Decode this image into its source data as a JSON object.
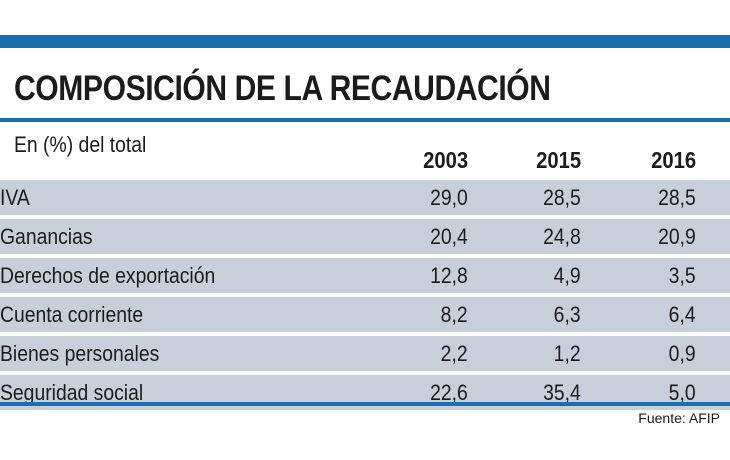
{
  "chart_data": {
    "type": "table",
    "title": "COMPOSICIÓN DE LA RECAUDACIÓN",
    "unit_label": "En (%) del total",
    "columns": [
      "2003",
      "2015",
      "2016"
    ],
    "rows": [
      {
        "label": "IVA",
        "values": [
          "29,0",
          "28,5",
          "28,5"
        ]
      },
      {
        "label": "Ganancias",
        "values": [
          "20,4",
          "24,8",
          "20,9"
        ]
      },
      {
        "label": "Derechos de exportación",
        "values": [
          "12,8",
          "4,9",
          "3,5"
        ]
      },
      {
        "label": "Cuenta corriente",
        "values": [
          "8,2",
          "6,3",
          "6,4"
        ]
      },
      {
        "label": "Bienes personales",
        "values": [
          "2,2",
          "1,2",
          "0,9"
        ]
      },
      {
        "label": "Seguridad social",
        "values": [
          "22,6",
          "35,4",
          "5,0"
        ]
      }
    ],
    "source": "Fuente: AFIP"
  },
  "colors": {
    "accent": "#1a6fb0",
    "row_fill": "#c7d0da",
    "text": "#1c1c1c"
  }
}
